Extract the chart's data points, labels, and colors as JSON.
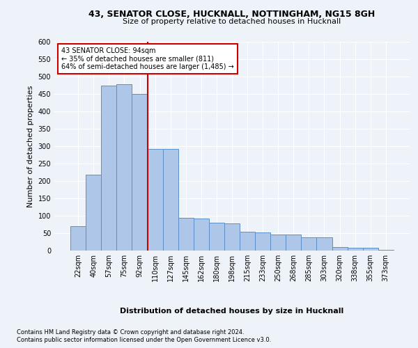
{
  "title1": "43, SENATOR CLOSE, HUCKNALL, NOTTINGHAM, NG15 8GH",
  "title2": "Size of property relative to detached houses in Hucknall",
  "xlabel": "Distribution of detached houses by size in Hucknall",
  "ylabel": "Number of detached properties",
  "footnote1": "Contains HM Land Registry data © Crown copyright and database right 2024.",
  "footnote2": "Contains public sector information licensed under the Open Government Licence v3.0.",
  "annotation_line1": "43 SENATOR CLOSE: 94sqm",
  "annotation_line2": "← 35% of detached houses are smaller (811)",
  "annotation_line3": "64% of semi-detached houses are larger (1,485) →",
  "bar_color": "#aec6e8",
  "bar_edge_color": "#5b8fc9",
  "marker_color": "#cc0000",
  "categories": [
    "22sqm",
    "40sqm",
    "57sqm",
    "75sqm",
    "92sqm",
    "110sqm",
    "127sqm",
    "145sqm",
    "162sqm",
    "180sqm",
    "198sqm",
    "215sqm",
    "233sqm",
    "250sqm",
    "268sqm",
    "285sqm",
    "303sqm",
    "320sqm",
    "338sqm",
    "355sqm",
    "373sqm"
  ],
  "values": [
    70,
    218,
    475,
    478,
    450,
    293,
    293,
    95,
    93,
    80,
    78,
    54,
    53,
    47,
    47,
    39,
    38,
    10,
    9,
    9,
    3
  ],
  "marker_bar_idx": 4,
  "ylim": [
    0,
    600
  ],
  "yticks": [
    0,
    50,
    100,
    150,
    200,
    250,
    300,
    350,
    400,
    450,
    500,
    550,
    600
  ],
  "bg_color": "#eef2f9",
  "grid_color": "#ffffff",
  "title1_fontsize": 9,
  "title2_fontsize": 8,
  "ylabel_fontsize": 8,
  "xlabel_fontsize": 8,
  "tick_fontsize": 7,
  "annot_fontsize": 7,
  "footnote_fontsize": 6
}
